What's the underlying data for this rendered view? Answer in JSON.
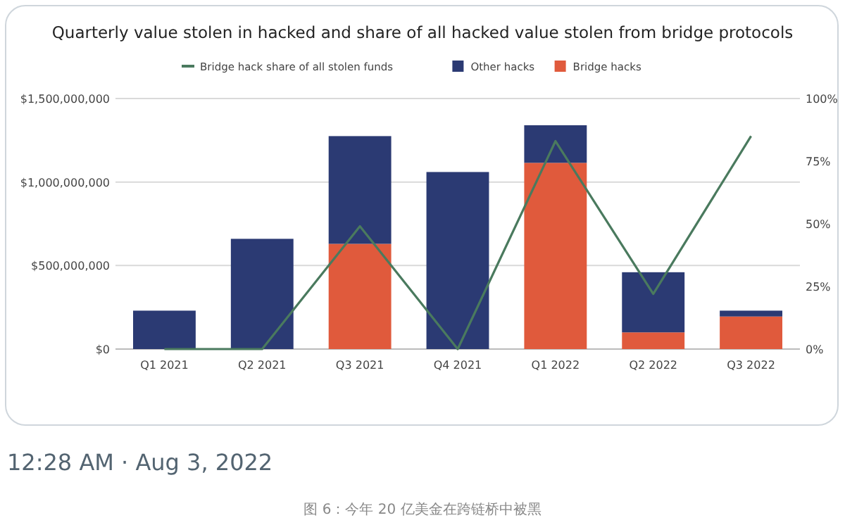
{
  "chart_data": {
    "type": "bar",
    "stacked": true,
    "title": "Quarterly value stolen in hacked and share of all hacked value stolen from bridge protocols",
    "categories": [
      "Q1 2021",
      "Q2 2021",
      "Q3 2021",
      "Q4 2021",
      "Q1 2022",
      "Q2 2022",
      "Q3 2022"
    ],
    "series": [
      {
        "name": "Bridge hacks",
        "color": "#e05a3c",
        "values": [
          0,
          0,
          630000000,
          0,
          1115000000,
          100000000,
          195000000
        ]
      },
      {
        "name": "Other hacks",
        "color": "#2b3a73",
        "values": [
          230000000,
          660000000,
          645000000,
          1060000000,
          225000000,
          360000000,
          35000000
        ]
      },
      {
        "name": "Bridge hack share of all stolen funds",
        "type": "line",
        "axis": "y2",
        "color": "#4a7a5e",
        "values": [
          0,
          0,
          49,
          0,
          83,
          22,
          85
        ]
      }
    ],
    "ylim": [
      0,
      1500000000
    ],
    "yticks": [
      {
        "value": 0,
        "label": "$0"
      },
      {
        "value": 500000000,
        "label": "$500,000,000"
      },
      {
        "value": 1000000000,
        "label": "$1,000,000,000"
      },
      {
        "value": 1500000000,
        "label": "$1,500,000,000"
      }
    ],
    "y2lim": [
      0,
      100
    ],
    "y2ticks": [
      {
        "value": 0,
        "label": "0%"
      },
      {
        "value": 25,
        "label": "25%"
      },
      {
        "value": 50,
        "label": "50%"
      },
      {
        "value": 75,
        "label": "75%"
      },
      {
        "value": 100,
        "label": "100%"
      }
    ],
    "grid": "y",
    "legend": "top",
    "marker": "none",
    "line_style": "solid",
    "annotations": [
      "12:28 AM · Aug 3, 2022",
      "图 6：今年 20 亿美金在跨链桥中被黑"
    ]
  }
}
